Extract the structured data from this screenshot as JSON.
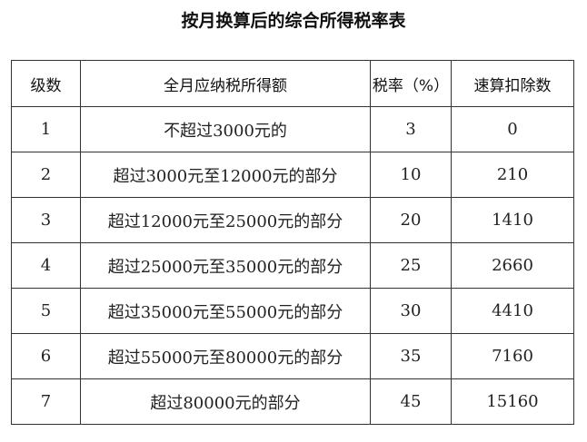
{
  "title": "按月换算后的综合所得税率表",
  "table": {
    "headers": [
      "级数",
      "全月应纳税所得额",
      "税率（%）",
      "速算扣除数"
    ],
    "rows": [
      [
        "1",
        "不超过3000元的",
        "3",
        "0"
      ],
      [
        "2",
        "超过3000元至12000元的部分",
        "10",
        "210"
      ],
      [
        "3",
        "超过12000元至25000元的部分",
        "20",
        "1410"
      ],
      [
        "4",
        "超过25000元至35000元的部分",
        "25",
        "2660"
      ],
      [
        "5",
        "超过35000元至55000元的部分",
        "30",
        "4410"
      ],
      [
        "6",
        "超过55000元至80000元的部分",
        "35",
        "7160"
      ],
      [
        "7",
        "超过80000元的部分",
        "45",
        "15160"
      ]
    ]
  }
}
